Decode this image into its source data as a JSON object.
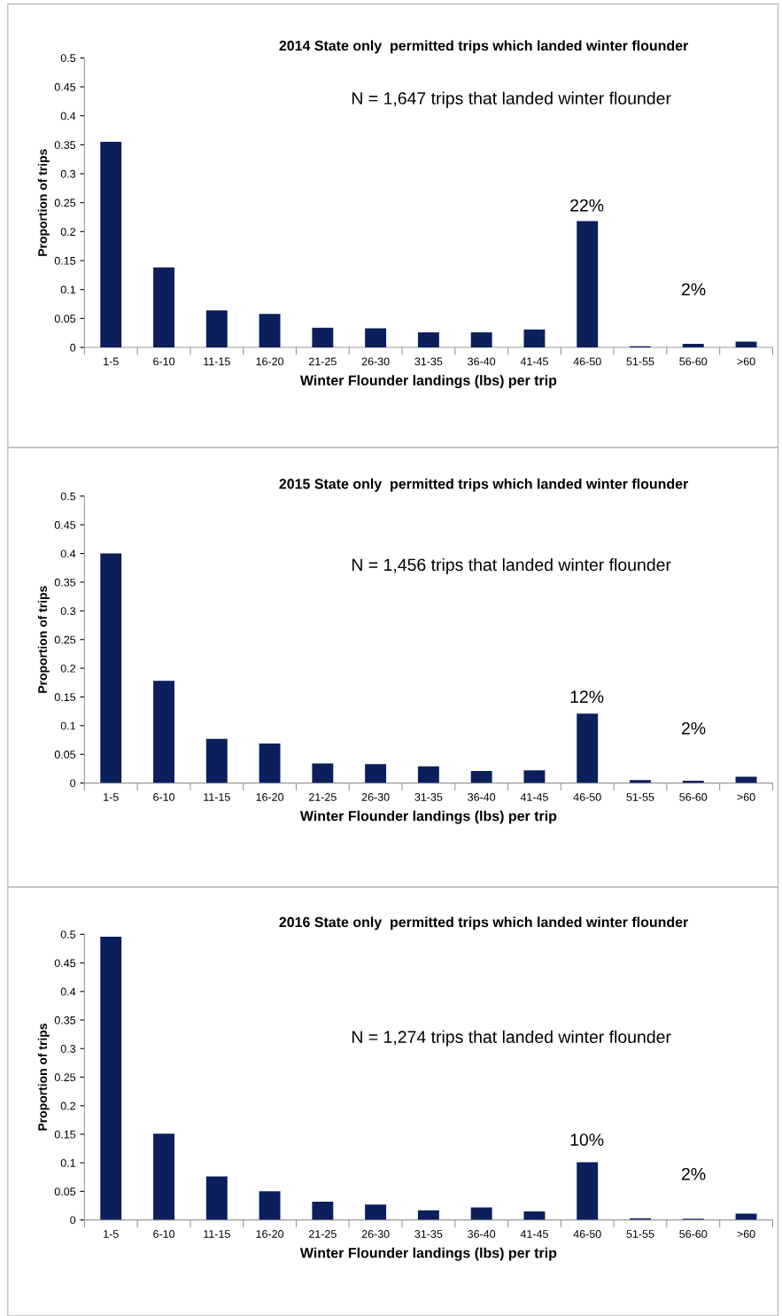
{
  "chart_data": [
    {
      "type": "bar",
      "title": "2014 State only  permitted trips which landed winter flounder",
      "xlabel": "Winter Flounder landings (lbs) per trip",
      "ylabel": "Proportion of trips",
      "categories": [
        "1-5",
        "6-10",
        "11-15",
        "16-20",
        "21-25",
        "26-30",
        "31-35",
        "36-40",
        "41-45",
        "46-50",
        "51-55",
        "56-60",
        ">60"
      ],
      "values": [
        0.355,
        0.138,
        0.064,
        0.058,
        0.034,
        0.033,
        0.026,
        0.026,
        0.031,
        0.218,
        0.002,
        0.006,
        0.01
      ],
      "color": "#0a1f5c",
      "ylim": [
        0,
        0.5
      ],
      "yticks": [
        0,
        0.05,
        0.1,
        0.15,
        0.2,
        0.25,
        0.3,
        0.35,
        0.4,
        0.45,
        0.5
      ],
      "grid": false,
      "annotations": [
        "N = 1,647 trips that landed winter flounder",
        "22%",
        "2%"
      ]
    },
    {
      "type": "bar",
      "title": "2015 State only  permitted trips which landed winter flounder",
      "xlabel": "Winter Flounder landings (lbs) per trip",
      "ylabel": "Proportion of trips",
      "categories": [
        "1-5",
        "6-10",
        "11-15",
        "16-20",
        "21-25",
        "26-30",
        "31-35",
        "36-40",
        "41-45",
        "46-50",
        "51-55",
        "56-60",
        ">60"
      ],
      "values": [
        0.4,
        0.178,
        0.077,
        0.069,
        0.034,
        0.033,
        0.029,
        0.021,
        0.022,
        0.121,
        0.005,
        0.004,
        0.011
      ],
      "color": "#0a1f5c",
      "ylim": [
        0,
        0.5
      ],
      "yticks": [
        0,
        0.05,
        0.1,
        0.15,
        0.2,
        0.25,
        0.3,
        0.35,
        0.4,
        0.45,
        0.5
      ],
      "grid": false,
      "annotations": [
        "N = 1,456 trips that landed winter flounder",
        "12%",
        "2%"
      ]
    },
    {
      "type": "bar",
      "title": "2016 State only  permitted trips which landed winter flounder",
      "xlabel": "Winter Flounder landings (lbs) per trip",
      "ylabel": "Proportion of trips",
      "categories": [
        "1-5",
        "6-10",
        "11-15",
        "16-20",
        "21-25",
        "26-30",
        "31-35",
        "36-40",
        "41-45",
        "46-50",
        "51-55",
        "56-60",
        ">60"
      ],
      "values": [
        0.496,
        0.151,
        0.076,
        0.05,
        0.032,
        0.027,
        0.017,
        0.022,
        0.015,
        0.101,
        0.003,
        0.002,
        0.011
      ],
      "color": "#0a1f5c",
      "ylim": [
        0,
        0.5
      ],
      "yticks": [
        0,
        0.05,
        0.1,
        0.15,
        0.2,
        0.25,
        0.3,
        0.35,
        0.4,
        0.45,
        0.5
      ],
      "grid": false,
      "annotations": [
        "N = 1,274 trips that landed winter flounder",
        "10%",
        "2%"
      ]
    }
  ]
}
